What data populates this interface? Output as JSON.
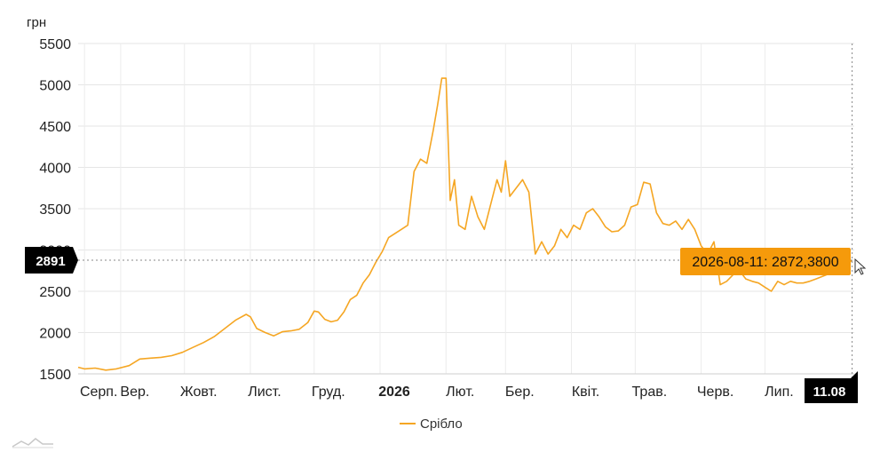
{
  "chart_data": {
    "type": "line",
    "ylabel": "грн",
    "ylim": [
      1500,
      5500
    ],
    "yticks": [
      1500,
      2000,
      2500,
      3000,
      3500,
      4000,
      4500,
      5000,
      5500
    ],
    "xticks": [
      {
        "label": "Серп.",
        "date": "2025-08-15",
        "bold": false
      },
      {
        "label": "Вер.",
        "date": "2025-09-01",
        "bold": false
      },
      {
        "label": "Жовт.",
        "date": "2025-10-01",
        "bold": false
      },
      {
        "label": "Лист.",
        "date": "2025-11-01",
        "bold": false
      },
      {
        "label": "Груд.",
        "date": "2025-12-01",
        "bold": false
      },
      {
        "label": "2026",
        "date": "2026-01-01",
        "bold": true
      },
      {
        "label": "Лют.",
        "date": "2026-02-01",
        "bold": false
      },
      {
        "label": "Бер.",
        "date": "2026-03-01",
        "bold": false
      },
      {
        "label": "Квіт.",
        "date": "2026-04-01",
        "bold": false
      },
      {
        "label": "Трав.",
        "date": "2026-05-01",
        "bold": false
      },
      {
        "label": "Черв.",
        "date": "2026-06-01",
        "bold": false
      },
      {
        "label": "Лип.",
        "date": "2026-07-01",
        "bold": false
      }
    ],
    "grid": true,
    "legend_position": "bottom",
    "series": [
      {
        "name": "Срібло",
        "color": "#f5a623",
        "points": [
          [
            "2025-08-12",
            1580
          ],
          [
            "2025-08-15",
            1560
          ],
          [
            "2025-08-20",
            1570
          ],
          [
            "2025-08-25",
            1545
          ],
          [
            "2025-08-30",
            1560
          ],
          [
            "2025-09-05",
            1600
          ],
          [
            "2025-09-10",
            1680
          ],
          [
            "2025-09-15",
            1690
          ],
          [
            "2025-09-20",
            1700
          ],
          [
            "2025-09-25",
            1720
          ],
          [
            "2025-09-30",
            1760
          ],
          [
            "2025-10-05",
            1820
          ],
          [
            "2025-10-10",
            1880
          ],
          [
            "2025-10-15",
            1950
          ],
          [
            "2025-10-20",
            2050
          ],
          [
            "2025-10-25",
            2150
          ],
          [
            "2025-10-30",
            2220
          ],
          [
            "2025-11-01",
            2190
          ],
          [
            "2025-11-04",
            2050
          ],
          [
            "2025-11-08",
            2000
          ],
          [
            "2025-11-12",
            1960
          ],
          [
            "2025-11-16",
            2010
          ],
          [
            "2025-11-20",
            2020
          ],
          [
            "2025-11-24",
            2040
          ],
          [
            "2025-11-28",
            2120
          ],
          [
            "2025-12-01",
            2260
          ],
          [
            "2025-12-03",
            2250
          ],
          [
            "2025-12-06",
            2160
          ],
          [
            "2025-12-09",
            2130
          ],
          [
            "2025-12-12",
            2150
          ],
          [
            "2025-12-15",
            2250
          ],
          [
            "2025-12-18",
            2400
          ],
          [
            "2025-12-21",
            2450
          ],
          [
            "2025-12-24",
            2600
          ],
          [
            "2025-12-27",
            2700
          ],
          [
            "2025-12-30",
            2850
          ],
          [
            "2026-01-02",
            2980
          ],
          [
            "2026-01-05",
            3150
          ],
          [
            "2026-01-08",
            3200
          ],
          [
            "2026-01-11",
            3250
          ],
          [
            "2026-01-14",
            3300
          ],
          [
            "2026-01-17",
            3950
          ],
          [
            "2026-01-20",
            4100
          ],
          [
            "2026-01-23",
            4050
          ],
          [
            "2026-01-26",
            4450
          ],
          [
            "2026-01-28",
            4750
          ],
          [
            "2026-01-30",
            5080
          ],
          [
            "2026-02-01",
            5080
          ],
          [
            "2026-02-03",
            3600
          ],
          [
            "2026-02-05",
            3850
          ],
          [
            "2026-02-07",
            3300
          ],
          [
            "2026-02-10",
            3250
          ],
          [
            "2026-02-13",
            3650
          ],
          [
            "2026-02-16",
            3400
          ],
          [
            "2026-02-19",
            3250
          ],
          [
            "2026-02-22",
            3550
          ],
          [
            "2026-02-25",
            3850
          ],
          [
            "2026-02-27",
            3700
          ],
          [
            "2026-03-01",
            4080
          ],
          [
            "2026-03-03",
            3650
          ],
          [
            "2026-03-06",
            3750
          ],
          [
            "2026-03-09",
            3850
          ],
          [
            "2026-03-12",
            3700
          ],
          [
            "2026-03-15",
            2950
          ],
          [
            "2026-03-18",
            3100
          ],
          [
            "2026-03-21",
            2950
          ],
          [
            "2026-03-24",
            3050
          ],
          [
            "2026-03-27",
            3250
          ],
          [
            "2026-03-30",
            3150
          ],
          [
            "2026-04-02",
            3300
          ],
          [
            "2026-04-05",
            3250
          ],
          [
            "2026-04-08",
            3450
          ],
          [
            "2026-04-11",
            3500
          ],
          [
            "2026-04-14",
            3400
          ],
          [
            "2026-04-17",
            3280
          ],
          [
            "2026-04-20",
            3220
          ],
          [
            "2026-04-23",
            3230
          ],
          [
            "2026-04-26",
            3300
          ],
          [
            "2026-04-29",
            3520
          ],
          [
            "2026-05-02",
            3550
          ],
          [
            "2026-05-05",
            3820
          ],
          [
            "2026-05-08",
            3800
          ],
          [
            "2026-05-11",
            3450
          ],
          [
            "2026-05-14",
            3320
          ],
          [
            "2026-05-17",
            3300
          ],
          [
            "2026-05-20",
            3350
          ],
          [
            "2026-05-23",
            3250
          ],
          [
            "2026-05-26",
            3370
          ],
          [
            "2026-05-29",
            3250
          ],
          [
            "2026-06-01",
            3050
          ],
          [
            "2026-06-04",
            2950
          ],
          [
            "2026-06-07",
            3100
          ],
          [
            "2026-06-10",
            2580
          ],
          [
            "2026-06-13",
            2620
          ],
          [
            "2026-06-16",
            2700
          ],
          [
            "2026-06-19",
            2750
          ],
          [
            "2026-06-22",
            2650
          ],
          [
            "2026-06-25",
            2620
          ],
          [
            "2026-06-28",
            2600
          ],
          [
            "2026-07-01",
            2550
          ],
          [
            "2026-07-04",
            2500
          ],
          [
            "2026-07-07",
            2620
          ],
          [
            "2026-07-10",
            2580
          ],
          [
            "2026-07-13",
            2620
          ],
          [
            "2026-07-16",
            2600
          ],
          [
            "2026-07-19",
            2600
          ],
          [
            "2026-07-22",
            2620
          ],
          [
            "2026-07-25",
            2650
          ],
          [
            "2026-07-28",
            2680
          ],
          [
            "2026-08-01",
            2720
          ],
          [
            "2026-08-04",
            2780
          ],
          [
            "2026-08-08",
            2830
          ],
          [
            "2026-08-11",
            2872.38
          ]
        ]
      }
    ],
    "crosshair": {
      "date": "2026-08-11",
      "date_label": "11.08",
      "y_label": "2891",
      "tooltip": "2026-08-11: 2872,3800",
      "tooltip_color": "#f59a0b"
    }
  }
}
